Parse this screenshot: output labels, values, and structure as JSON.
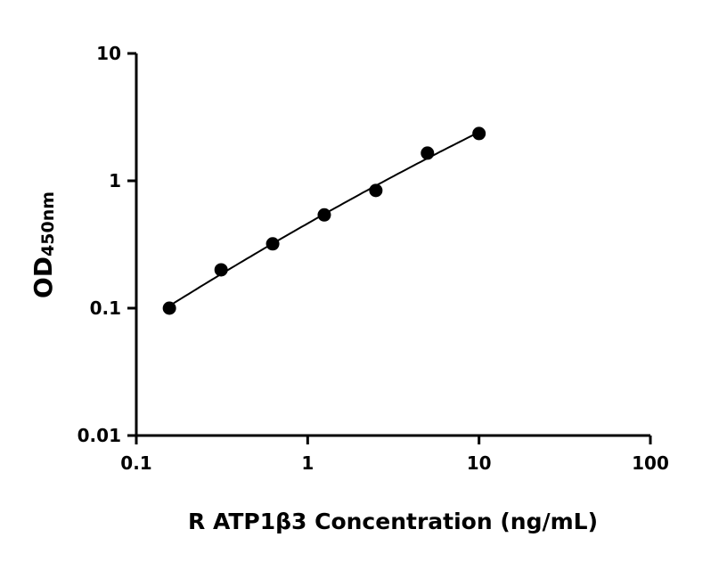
{
  "chart_data": {
    "type": "scatter",
    "title": "",
    "xlabel": "R ATP1β3 Concentration (ng/mL)",
    "ylabel_main": "OD",
    "ylabel_sub": "450nm",
    "x_scale": "log",
    "y_scale": "log",
    "xlim": [
      0.1,
      100
    ],
    "ylim": [
      0.01,
      10
    ],
    "x_ticks": [
      "0.1",
      "1",
      "10",
      "100"
    ],
    "y_ticks": [
      "0.01",
      "0.1",
      "1",
      "10"
    ],
    "grid": false,
    "legend": "none",
    "fit_curve": true,
    "color": "#000000",
    "series": [
      {
        "x": [
          0.156,
          0.3125,
          0.625,
          1.25,
          2.5,
          5,
          10
        ],
        "y": [
          0.1,
          0.2,
          0.32,
          0.54,
          0.84,
          1.65,
          2.35
        ]
      }
    ]
  }
}
